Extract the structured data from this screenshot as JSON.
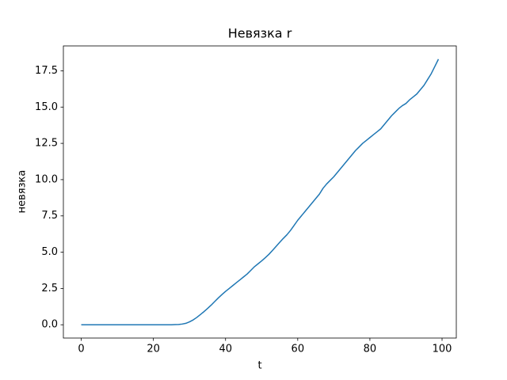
{
  "chart_data": {
    "type": "line",
    "title": "Невязка r",
    "xlabel": "t",
    "ylabel": "невязка",
    "x": [
      0,
      1,
      2,
      3,
      4,
      5,
      6,
      7,
      8,
      9,
      10,
      11,
      12,
      13,
      14,
      15,
      16,
      17,
      18,
      19,
      20,
      21,
      22,
      23,
      24,
      25,
      26,
      27,
      28,
      29,
      30,
      31,
      32,
      33,
      34,
      35,
      36,
      37,
      38,
      39,
      40,
      41,
      42,
      43,
      44,
      45,
      46,
      47,
      48,
      49,
      50,
      51,
      52,
      53,
      54,
      55,
      56,
      57,
      58,
      59,
      60,
      61,
      62,
      63,
      64,
      65,
      66,
      67,
      68,
      69,
      70,
      71,
      72,
      73,
      74,
      75,
      76,
      77,
      78,
      79,
      80,
      81,
      82,
      83,
      84,
      85,
      86,
      87,
      88,
      89,
      90,
      91,
      92,
      93,
      94,
      95,
      96,
      97,
      98,
      99
    ],
    "values": [
      0,
      0,
      0,
      0,
      0,
      0,
      0,
      0,
      0,
      0,
      0,
      0,
      0,
      0,
      0,
      0,
      0,
      0,
      0,
      0,
      0,
      0,
      0,
      0,
      0,
      0,
      0.01,
      0.02,
      0.05,
      0.1,
      0.2,
      0.33,
      0.5,
      0.7,
      0.9,
      1.12,
      1.35,
      1.6,
      1.85,
      2.08,
      2.3,
      2.5,
      2.7,
      2.9,
      3.1,
      3.3,
      3.5,
      3.75,
      4.0,
      4.2,
      4.4,
      4.62,
      4.85,
      5.12,
      5.4,
      5.68,
      5.95,
      6.2,
      6.5,
      6.85,
      7.2,
      7.5,
      7.8,
      8.1,
      8.4,
      8.7,
      9.0,
      9.4,
      9.7,
      9.95,
      10.2,
      10.5,
      10.8,
      11.1,
      11.4,
      11.7,
      12.0,
      12.25,
      12.5,
      12.7,
      12.9,
      13.1,
      13.3,
      13.5,
      13.8,
      14.1,
      14.4,
      14.65,
      14.9,
      15.1,
      15.25,
      15.5,
      15.7,
      15.9,
      16.2,
      16.5,
      16.9,
      17.3,
      17.8,
      18.3
    ],
    "color": "#1f77b4",
    "xlim": [
      -4.95,
      103.95
    ],
    "xticks": [
      0,
      20,
      40,
      60,
      80,
      100
    ],
    "ylim": [
      -0.915,
      19.215
    ],
    "yticks": [
      {
        "value": 0,
        "label": "0.0"
      },
      2.5,
      {
        "value": 5,
        "label": "5.0"
      },
      7.5,
      {
        "value": 10,
        "label": "10.0"
      },
      12.5,
      {
        "value": 15,
        "label": "15.0"
      },
      17.5
    ],
    "grid": false
  }
}
